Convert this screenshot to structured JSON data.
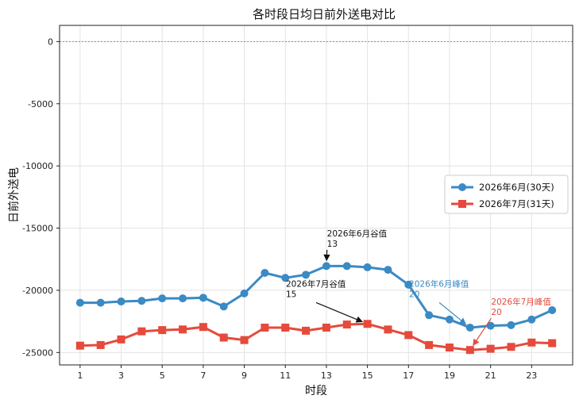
{
  "chart_data": {
    "type": "line",
    "title": "各时段日均日前外送电对比",
    "xlabel": "时段",
    "ylabel": "日前外送电",
    "x": [
      1,
      2,
      3,
      4,
      5,
      6,
      7,
      8,
      9,
      10,
      11,
      12,
      13,
      14,
      15,
      16,
      17,
      18,
      19,
      20,
      21,
      22,
      23,
      24
    ],
    "xticks": [
      1,
      3,
      5,
      7,
      9,
      11,
      13,
      15,
      17,
      19,
      21,
      23
    ],
    "xlim": [
      0.0,
      25.0
    ],
    "ylim": [
      -26000,
      1300
    ],
    "yticks": [
      0,
      -5000,
      -10000,
      -15000,
      -20000,
      -25000
    ],
    "grid": true,
    "zero_line": true,
    "legend_position": "center-right",
    "series": [
      {
        "name": "2026年6月(30天)",
        "color": "#3a8ac4",
        "marker": "circle",
        "values": [
          -21000,
          -21000,
          -20900,
          -20850,
          -20650,
          -20650,
          -20600,
          -21300,
          -20250,
          -18600,
          -19000,
          -18750,
          -18050,
          -18050,
          -18150,
          -18350,
          -19550,
          -22000,
          -22350,
          -23000,
          -22850,
          -22800,
          -22350,
          -21600
        ]
      },
      {
        "name": "2026年7月(31天)",
        "color": "#e54a3c",
        "marker": "square",
        "values": [
          -24450,
          -24400,
          -23950,
          -23300,
          -23200,
          -23150,
          -22950,
          -23800,
          -24000,
          -23000,
          -23000,
          -23250,
          -23000,
          -22750,
          -22700,
          -23150,
          -23600,
          -24400,
          -24600,
          -24800,
          -24700,
          -24550,
          -24200,
          -24250
        ]
      }
    ],
    "annotations": [
      {
        "line1": "2026年6月谷值",
        "line2": "13",
        "x": 13,
        "y": -18050,
        "text_x": 14.5,
        "text_y": -16300,
        "color": "#111111"
      },
      {
        "line1": "2026年7月谷值",
        "line2": "15",
        "x": 15,
        "y": -22700,
        "text_x": 12.5,
        "text_y": -20350,
        "color": "#111111"
      },
      {
        "line1": "2026年6月峰值",
        "line2": "20",
        "x": 20,
        "y": -23000,
        "text_x": 18.5,
        "text_y": -20350,
        "color": "#3a8ac4"
      },
      {
        "line1": "2026年7月峰值",
        "line2": "20",
        "x": 20,
        "y": -24800,
        "text_x": 22.5,
        "text_y": -21800,
        "color": "#e54a3c"
      }
    ]
  }
}
